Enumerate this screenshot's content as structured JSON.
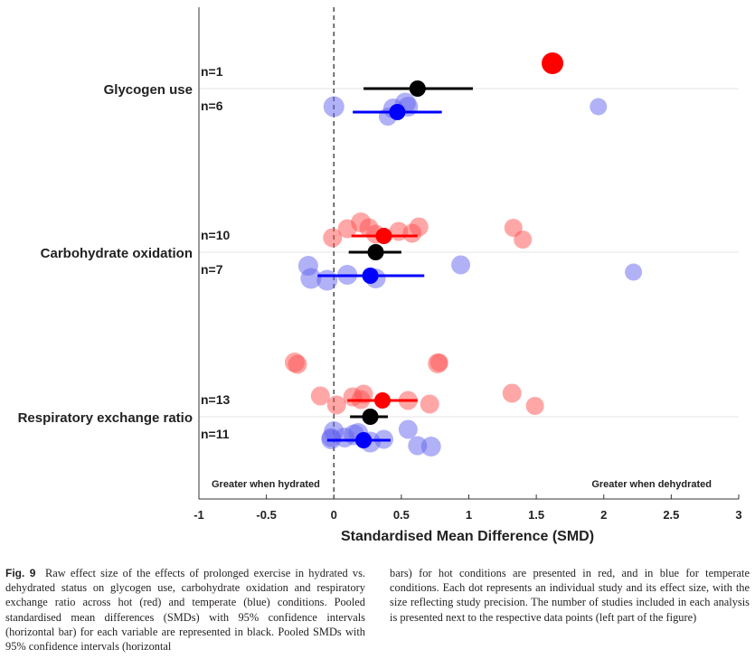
{
  "chart_data": {
    "type": "forest",
    "title": "",
    "xlabel": "Standardised Mean Difference (SMD)",
    "xlim": [
      -1,
      3
    ],
    "xticks": [
      "-1",
      "-0.5",
      "0",
      "0.5",
      "1",
      "1.5",
      "2",
      "2.5",
      "3"
    ],
    "reference_line": 0,
    "annotations": {
      "left": "Greater when hydrated",
      "right": "Greater when dehydrated"
    },
    "colors": {
      "hot": "#ff0000",
      "temperate": "#0000ff",
      "pooled": "#000000",
      "grid": "#e6e6e6"
    },
    "rows": [
      {
        "label": "Glycogen use",
        "hot": {
          "n_label": "n=1",
          "pooled": {
            "smd": 1.62,
            "ci": [
              1.62,
              1.62
            ]
          },
          "studies": [
            {
              "smd": 1.62,
              "w": 1.0
            }
          ]
        },
        "overall": {
          "smd": 0.62,
          "ci": [
            0.22,
            1.03
          ]
        },
        "temperate": {
          "n_label": "n=6",
          "pooled": {
            "smd": 0.47,
            "ci": [
              0.14,
              0.8
            ]
          },
          "studies": [
            {
              "smd": 0.0,
              "w": 0.9
            },
            {
              "smd": 0.44,
              "w": 0.8
            },
            {
              "smd": 0.53,
              "w": 0.9
            },
            {
              "smd": 0.55,
              "w": 0.8
            },
            {
              "smd": 0.4,
              "w": 0.6
            },
            {
              "smd": 1.96,
              "w": 0.5
            }
          ]
        }
      },
      {
        "label": "Carbohydrate oxidation",
        "hot": {
          "n_label": "n=10",
          "pooled": {
            "smd": 0.37,
            "ci": [
              0.13,
              0.62
            ]
          },
          "studies": [
            {
              "smd": 0.2,
              "w": 0.8
            },
            {
              "smd": 0.26,
              "w": 0.7
            },
            {
              "smd": 0.1,
              "w": 0.7
            },
            {
              "smd": 0.63,
              "w": 0.7
            },
            {
              "smd": 0.48,
              "w": 0.7
            },
            {
              "smd": 1.33,
              "w": 0.6
            },
            {
              "smd": 1.4,
              "w": 0.6
            },
            {
              "smd": -0.01,
              "w": 0.7
            },
            {
              "smd": 0.58,
              "w": 0.7
            },
            {
              "smd": 0.31,
              "w": 0.7
            }
          ]
        },
        "overall": {
          "smd": 0.31,
          "ci": [
            0.11,
            0.5
          ]
        },
        "temperate": {
          "n_label": "n=7",
          "pooled": {
            "smd": 0.27,
            "ci": [
              -0.12,
              0.67
            ]
          },
          "studies": [
            {
              "smd": -0.19,
              "w": 0.8
            },
            {
              "smd": 0.94,
              "w": 0.7
            },
            {
              "smd": 2.22,
              "w": 0.5
            },
            {
              "smd": -0.17,
              "w": 0.9
            },
            {
              "smd": -0.05,
              "w": 0.9
            },
            {
              "smd": 0.1,
              "w": 0.8
            },
            {
              "smd": 0.31,
              "w": 0.8
            }
          ]
        }
      },
      {
        "label": "Respiratory exchange ratio",
        "hot": {
          "n_label": "n=13",
          "pooled": {
            "smd": 0.36,
            "ci": [
              0.1,
              0.62
            ]
          },
          "studies": [
            {
              "smd": -0.29,
              "w": 0.8
            },
            {
              "smd": -0.27,
              "w": 0.7
            },
            {
              "smd": 0.77,
              "w": 0.8
            },
            {
              "smd": 0.78,
              "w": 0.6
            },
            {
              "smd": 1.32,
              "w": 0.7
            },
            {
              "smd": -0.1,
              "w": 0.7
            },
            {
              "smd": 0.14,
              "w": 0.7
            },
            {
              "smd": 0.22,
              "w": 0.7
            },
            {
              "smd": 0.2,
              "w": 0.7
            },
            {
              "smd": 0.55,
              "w": 0.7
            },
            {
              "smd": 0.71,
              "w": 0.7
            },
            {
              "smd": 1.49,
              "w": 0.6
            },
            {
              "smd": 0.02,
              "w": 0.7
            }
          ]
        },
        "overall": {
          "smd": 0.27,
          "ci": [
            0.12,
            0.4
          ]
        },
        "temperate": {
          "n_label": "n=11",
          "pooled": {
            "smd": 0.22,
            "ci": [
              -0.05,
              0.42
            ]
          },
          "studies": [
            {
              "smd": 0.0,
              "w": 0.8
            },
            {
              "smd": 0.18,
              "w": 0.8
            },
            {
              "smd": 0.08,
              "w": 0.8
            },
            {
              "smd": 0.55,
              "w": 0.7
            },
            {
              "smd": -0.02,
              "w": 0.8
            },
            {
              "smd": 0.27,
              "w": 0.9
            },
            {
              "smd": 0.62,
              "w": 0.7
            },
            {
              "smd": 0.72,
              "w": 0.8
            },
            {
              "smd": 0.15,
              "w": 0.9
            },
            {
              "smd": 0.37,
              "w": 0.7
            },
            {
              "smd": -0.02,
              "w": 0.7
            }
          ]
        }
      }
    ]
  },
  "caption": {
    "label": "Fig. 9",
    "col1": "Raw effect size of the effects of prolonged exercise in hydrated vs. dehydrated status on glycogen use, carbohydrate oxidation and respiratory exchange ratio across hot (red) and temperate (blue) conditions. Pooled standardised mean differences (SMDs) with 95% confidence intervals (horizontal bar) for each variable are represented in black. Pooled SMDs with 95% confidence intervals (horizontal",
    "col2": "bars) for hot conditions are presented in red, and in blue for temperate conditions. Each dot represents an individual study and its effect size, with the size reflecting study precision. The number of studies included in each analysis is presented next to the respective data points (left part of the figure)"
  }
}
